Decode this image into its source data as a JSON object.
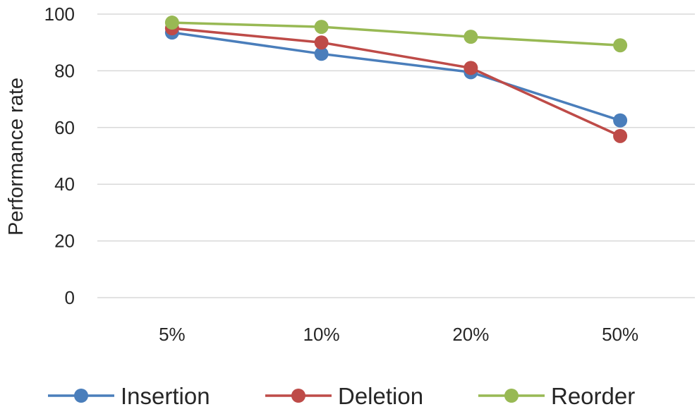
{
  "chart_data": {
    "type": "line",
    "title": "",
    "xlabel": "",
    "ylabel": "Performance rate",
    "categories": [
      "5%",
      "10%",
      "20%",
      "50%"
    ],
    "ylim": [
      0,
      100
    ],
    "yticks": [
      0,
      20,
      40,
      60,
      80,
      100
    ],
    "grid": true,
    "legend_position": "bottom",
    "series": [
      {
        "name": "Insertion",
        "color": "#4a7ebb",
        "values": [
          93.5,
          86,
          79.5,
          62.5
        ]
      },
      {
        "name": "Deletion",
        "color": "#be4b48",
        "values": [
          95,
          90,
          81,
          57
        ]
      },
      {
        "name": "Reorder",
        "color": "#98b954",
        "values": [
          97,
          95.5,
          92,
          89
        ]
      }
    ]
  }
}
